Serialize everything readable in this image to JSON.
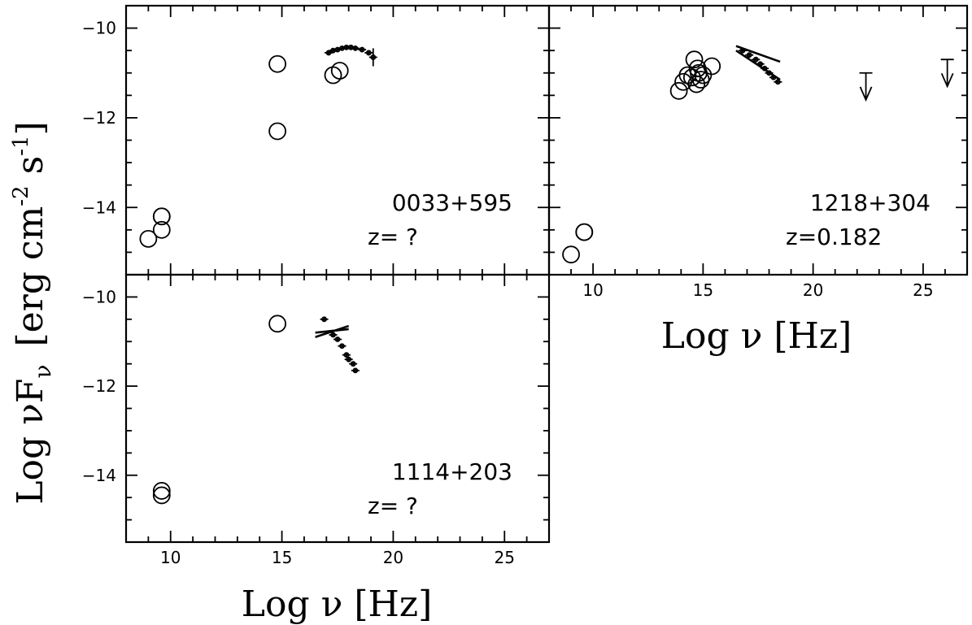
{
  "figure": {
    "ylabel": "Log νF",
    "ylabel_sub": "ν",
    "ylabel_units": "[erg cm",
    "ylabel_exp1": "-2",
    "ylabel_mid": " s",
    "ylabel_exp2": "-1",
    "ylabel_close": "]",
    "xlabel_left": "Log  ν  [Hz]",
    "xlabel_right": "Log  ν  [Hz]"
  },
  "chart_data": [
    {
      "type": "scatter",
      "panel": "top-left",
      "name": "0033+595",
      "redshift_label": "z=  ?",
      "xlim": [
        8,
        27
      ],
      "ylim": [
        -15.5,
        -9.5
      ],
      "x_ticks": [
        10,
        15,
        20,
        25
      ],
      "y_ticks": [
        -10,
        -12,
        -14
      ],
      "x_tick_labels_shown": false,
      "y_tick_labels_shown": true,
      "circles": [
        {
          "x": 9.0,
          "y": -14.7
        },
        {
          "x": 9.6,
          "y": -14.2
        },
        {
          "x": 9.6,
          "y": -14.2
        },
        {
          "x": 9.6,
          "y": -14.5
        },
        {
          "x": 14.8,
          "y": -10.8
        },
        {
          "x": 14.8,
          "y": -12.3
        },
        {
          "x": 17.3,
          "y": -11.05
        },
        {
          "x": 17.6,
          "y": -10.95
        }
      ],
      "xray_points": [
        {
          "x": 17.1,
          "y": -10.55
        },
        {
          "x": 17.3,
          "y": -10.5
        },
        {
          "x": 17.5,
          "y": -10.48
        },
        {
          "x": 17.7,
          "y": -10.45
        },
        {
          "x": 17.9,
          "y": -10.43
        },
        {
          "x": 18.1,
          "y": -10.43
        },
        {
          "x": 18.3,
          "y": -10.45
        },
        {
          "x": 18.6,
          "y": -10.48
        },
        {
          "x": 18.9,
          "y": -10.55
        },
        {
          "x": 19.1,
          "y": -10.65,
          "err": 0.2
        }
      ],
      "bowties": [],
      "upper_limits": []
    },
    {
      "type": "scatter",
      "panel": "top-right",
      "name": "1218+304",
      "redshift_label": "z=0.182",
      "xlim": [
        8,
        27
      ],
      "ylim": [
        -15.5,
        -9.5
      ],
      "x_ticks": [
        10,
        15,
        20,
        25
      ],
      "y_ticks": [
        -10,
        -12,
        -14
      ],
      "x_tick_labels_shown": true,
      "y_tick_labels_shown": false,
      "circles": [
        {
          "x": 9.0,
          "y": -15.05
        },
        {
          "x": 9.6,
          "y": -14.55
        },
        {
          "x": 9.6,
          "y": -14.55
        },
        {
          "x": 13.9,
          "y": -11.4
        },
        {
          "x": 14.1,
          "y": -11.2
        },
        {
          "x": 14.3,
          "y": -11.05
        },
        {
          "x": 14.5,
          "y": -11.1
        },
        {
          "x": 14.6,
          "y": -10.7
        },
        {
          "x": 14.7,
          "y": -11.25
        },
        {
          "x": 14.75,
          "y": -10.9
        },
        {
          "x": 14.8,
          "y": -11.0
        },
        {
          "x": 14.9,
          "y": -11.15
        },
        {
          "x": 15.0,
          "y": -11.05
        },
        {
          "x": 15.4,
          "y": -10.85
        }
      ],
      "xray_points": [
        {
          "x": 16.8,
          "y": -10.5
        },
        {
          "x": 17.1,
          "y": -10.6
        },
        {
          "x": 17.4,
          "y": -10.7
        },
        {
          "x": 17.6,
          "y": -10.8
        },
        {
          "x": 17.8,
          "y": -10.9
        },
        {
          "x": 18.0,
          "y": -11.0
        },
        {
          "x": 18.2,
          "y": -11.1
        },
        {
          "x": 18.4,
          "y": -11.2
        }
      ],
      "bowties": [
        {
          "x1": 16.5,
          "x2": 18.5,
          "y1": -10.4,
          "y2": -10.75,
          "y1b": -10.5,
          "y2b": -11.15
        }
      ],
      "upper_limits": [
        {
          "x": 22.4,
          "y": -11.0
        },
        {
          "x": 26.1,
          "y": -10.7
        }
      ]
    },
    {
      "type": "scatter",
      "panel": "bottom-left",
      "name": "1114+203",
      "redshift_label": "z=  ?",
      "xlim": [
        8,
        27
      ],
      "ylim": [
        -15.5,
        -9.5
      ],
      "x_ticks": [
        10,
        15,
        20,
        25
      ],
      "y_ticks": [
        -10,
        -12,
        -14
      ],
      "x_tick_labels_shown": true,
      "y_tick_labels_shown": true,
      "circles": [
        {
          "x": 9.6,
          "y": -14.35
        },
        {
          "x": 9.6,
          "y": -14.45
        },
        {
          "x": 14.8,
          "y": -10.6
        }
      ],
      "xray_points": [
        {
          "x": 16.9,
          "y": -10.5,
          "err": 0.05
        },
        {
          "x": 17.3,
          "y": -10.85
        },
        {
          "x": 17.5,
          "y": -10.95
        },
        {
          "x": 17.7,
          "y": -11.1
        },
        {
          "x": 17.9,
          "y": -11.3
        },
        {
          "x": 18.0,
          "y": -11.4
        },
        {
          "x": 18.2,
          "y": -11.5
        },
        {
          "x": 18.3,
          "y": -11.65
        }
      ],
      "bowties": [
        {
          "x1": 16.5,
          "x2": 18.0,
          "y1": -10.8,
          "y2": -10.72,
          "y1b": -10.9,
          "y2b": -10.65
        }
      ],
      "upper_limits": []
    }
  ]
}
